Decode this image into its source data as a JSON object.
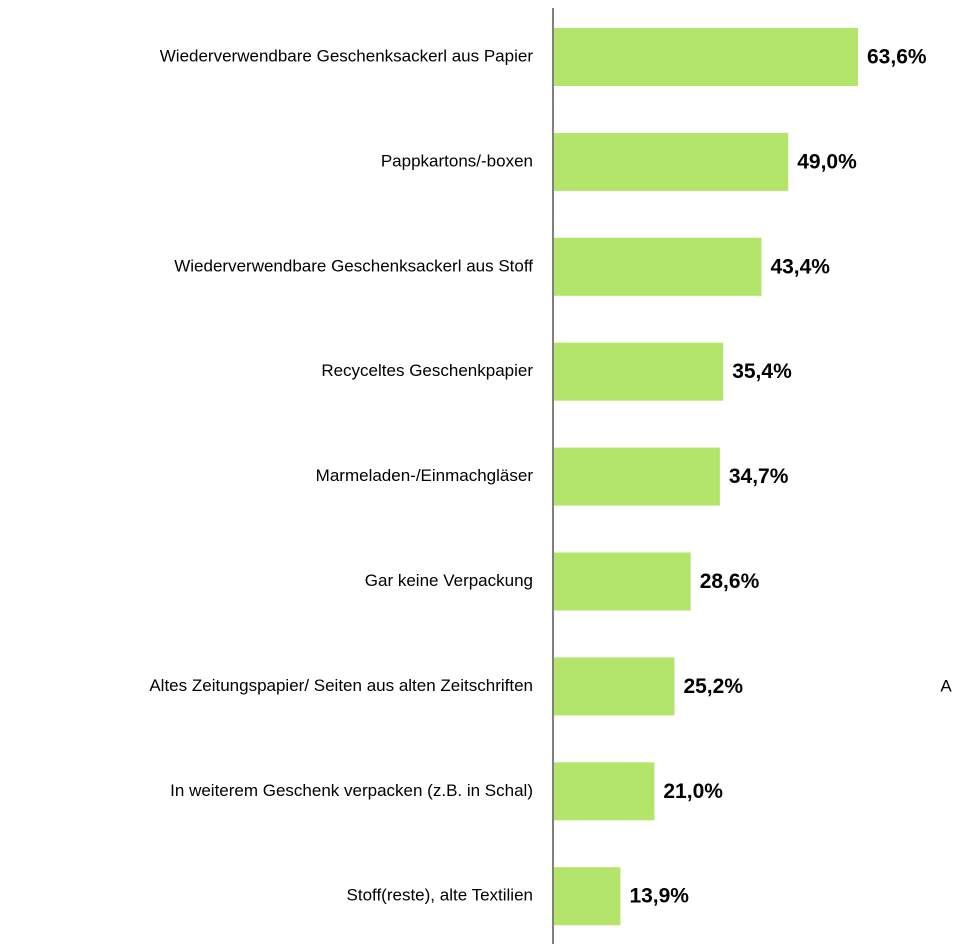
{
  "chart_data": {
    "type": "bar",
    "orientation": "horizontal",
    "categories": [
      "Wiederverwendbare Geschenksackerl aus Papier",
      "Pappkartons/-boxen",
      "Wiederverwendbare Geschenksackerl aus Stoff",
      "Recyceltes Geschenkpapier",
      "Marmeladen-/Einmachgläser",
      "Gar keine Verpackung",
      "Altes Zeitungspapier/ Seiten aus alten Zeitschriften",
      "In weiterem Geschenk verpacken (z.B. in Schal)",
      "Stoff(reste), alte Textilien"
    ],
    "values": [
      63.6,
      49.0,
      43.4,
      35.4,
      34.7,
      28.6,
      25.2,
      21.0,
      13.9
    ],
    "value_labels": [
      "63,6%",
      "49,0%",
      "43,4%",
      "35,4%",
      "34,7%",
      "28,6%",
      "25,2%",
      "21,0%",
      "13,9%"
    ],
    "color": "#b3e56b",
    "annotations": [
      "A"
    ]
  }
}
